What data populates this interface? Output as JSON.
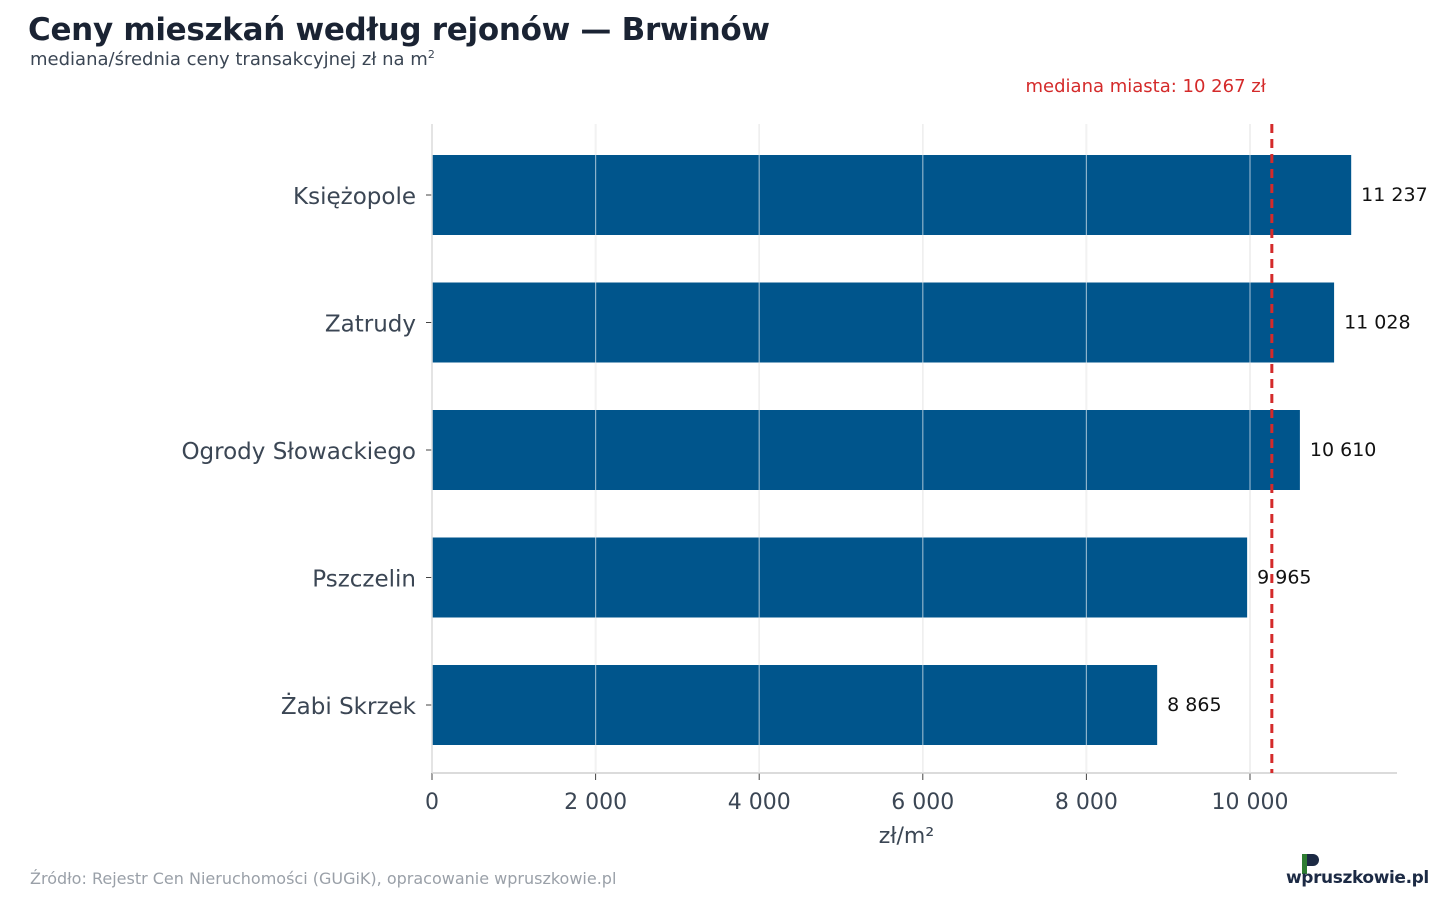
{
  "header": {
    "title": "Ceny mieszkań według rejonów — Brwinów",
    "subtitle": "mediana/średnia ceny transakcyjnej zł na m",
    "subtitle_sup": "2"
  },
  "footer": {
    "source": "Źródło: Rejestr Cen Nieruchomości (GUGiK), opracowanie wpruszkowie.pl",
    "logo_text": "wpruszkowie.pl"
  },
  "colors": {
    "bar": "#00558c",
    "reference": "#d42a2a",
    "grid": "#e3e3e3",
    "logo_green": "#2e7d32"
  },
  "chart_data": {
    "type": "bar",
    "orientation": "horizontal",
    "categories": [
      "Księżopole",
      "Zatrudy",
      "Ogrody Słowackiego",
      "Pszczelin",
      "Żabi Skrzek"
    ],
    "values": [
      11237,
      11028,
      10610,
      9965,
      8865
    ],
    "value_labels": [
      "11 237",
      "11 028",
      "10 610",
      "9 965",
      "8 865"
    ],
    "xlabel": "zł/m²",
    "ylabel": "",
    "xlim": [
      0,
      11800
    ],
    "xticks": [
      0,
      2000,
      4000,
      6000,
      8000,
      10000
    ],
    "xtick_labels": [
      "0",
      "2 000",
      "4 000",
      "6 000",
      "8 000",
      "10 000"
    ],
    "grid": true,
    "reference_line": {
      "value": 10267,
      "label": "mediana miasta: 10 267 zł",
      "style": "dashed"
    }
  }
}
